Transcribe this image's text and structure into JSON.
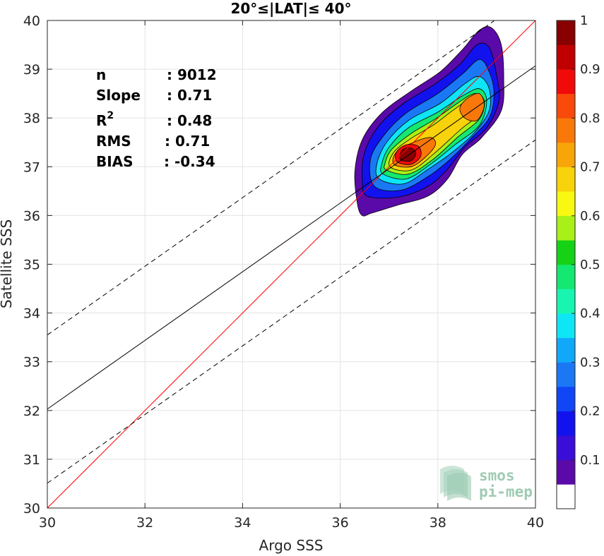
{
  "chart_data": {
    "type": "heatmap",
    "subtype": "2D density contour scatter comparison",
    "title": "20°≤|LAT|≤ 40°",
    "xlabel": "Argo SSS",
    "ylabel": "Satellite SSS",
    "xlim": [
      30,
      40
    ],
    "ylim": [
      30,
      40
    ],
    "xticks": [
      "30",
      "32",
      "34",
      "36",
      "38",
      "40"
    ],
    "yticks": [
      "30",
      "31",
      "32",
      "33",
      "34",
      "35",
      "36",
      "37",
      "38",
      "39",
      "40"
    ],
    "grid": true,
    "stats": [
      {
        "label": "n",
        "value": ": 9012"
      },
      {
        "label": "Slope",
        "value": ": 0.71"
      },
      {
        "label": "R",
        "sup": "2",
        "value": ": 0.48"
      },
      {
        "label": "RMS",
        "value": ": 0.71"
      },
      {
        "label": "BIAS",
        "value": ": -0.34"
      }
    ],
    "lines": {
      "identity": {
        "x": [
          30,
          40
        ],
        "y": [
          30,
          40
        ],
        "color": "#ff0000"
      },
      "fit": {
        "x": [
          30,
          40
        ],
        "y": [
          32.03,
          39.07
        ],
        "color": "#000000"
      },
      "upper_bound": {
        "x": [
          30,
          40
        ],
        "y": [
          33.55,
          40.59
        ],
        "color": "#000000",
        "style": "dashed"
      },
      "lower_bound": {
        "x": [
          30,
          40
        ],
        "y": [
          30.51,
          37.55
        ],
        "color": "#000000",
        "style": "dashed"
      }
    },
    "density_contours": [
      {
        "level": 0.05,
        "points": [
          [
            36.35,
            36.25
          ],
          [
            36.45,
            36.0
          ],
          [
            36.65,
            36.05
          ],
          [
            37.2,
            36.22
          ],
          [
            37.8,
            36.4
          ],
          [
            38.2,
            36.75
          ],
          [
            38.5,
            37.25
          ],
          [
            38.9,
            37.6
          ],
          [
            39.3,
            38.15
          ],
          [
            39.35,
            38.8
          ],
          [
            39.3,
            39.5
          ],
          [
            39.1,
            39.85
          ],
          [
            38.85,
            39.8
          ],
          [
            38.5,
            39.4
          ],
          [
            38.05,
            38.95
          ],
          [
            37.45,
            38.55
          ],
          [
            36.85,
            38.1
          ],
          [
            36.45,
            37.55
          ],
          [
            36.3,
            36.9
          ]
        ]
      },
      {
        "level": 0.15,
        "points": [
          [
            36.55,
            36.4
          ],
          [
            37.2,
            36.38
          ],
          [
            37.8,
            36.6
          ],
          [
            38.2,
            36.95
          ],
          [
            38.55,
            37.4
          ],
          [
            39.0,
            37.8
          ],
          [
            39.25,
            38.35
          ],
          [
            39.2,
            38.9
          ],
          [
            39.05,
            39.45
          ],
          [
            38.8,
            39.5
          ],
          [
            38.45,
            39.1
          ],
          [
            37.95,
            38.7
          ],
          [
            37.3,
            38.3
          ],
          [
            36.8,
            37.85
          ],
          [
            36.5,
            37.3
          ],
          [
            36.45,
            36.75
          ]
        ]
      },
      {
        "level": 0.25,
        "points": [
          [
            36.7,
            36.6
          ],
          [
            37.25,
            36.52
          ],
          [
            37.8,
            36.8
          ],
          [
            38.25,
            37.15
          ],
          [
            38.65,
            37.55
          ],
          [
            39.05,
            38.0
          ],
          [
            39.15,
            38.5
          ],
          [
            39.05,
            38.95
          ],
          [
            38.85,
            39.2
          ],
          [
            38.5,
            38.9
          ],
          [
            38.0,
            38.5
          ],
          [
            37.35,
            38.1
          ],
          [
            36.9,
            37.65
          ],
          [
            36.62,
            37.15
          ]
        ]
      },
      {
        "level": 0.35,
        "points": [
          [
            36.8,
            36.75
          ],
          [
            37.3,
            36.65
          ],
          [
            37.8,
            36.95
          ],
          [
            38.3,
            37.3
          ],
          [
            38.75,
            37.7
          ],
          [
            39.05,
            38.15
          ],
          [
            39.05,
            38.6
          ],
          [
            38.85,
            38.85
          ],
          [
            38.55,
            38.7
          ],
          [
            38.05,
            38.3
          ],
          [
            37.4,
            37.95
          ],
          [
            36.95,
            37.5
          ],
          [
            36.75,
            37.05
          ]
        ]
      },
      {
        "level": 0.45,
        "points": [
          [
            36.88,
            36.85
          ],
          [
            37.35,
            36.75
          ],
          [
            37.85,
            37.05
          ],
          [
            38.35,
            37.45
          ],
          [
            38.85,
            37.85
          ],
          [
            39.0,
            38.35
          ],
          [
            38.85,
            38.6
          ],
          [
            38.5,
            38.45
          ],
          [
            38.0,
            38.12
          ],
          [
            37.4,
            37.8
          ],
          [
            37.0,
            37.4
          ],
          [
            36.85,
            37.05
          ]
        ]
      },
      {
        "level": 0.55,
        "points": [
          [
            36.95,
            36.93
          ],
          [
            37.4,
            36.85
          ],
          [
            37.9,
            37.15
          ],
          [
            38.4,
            37.6
          ],
          [
            38.85,
            37.98
          ],
          [
            38.95,
            38.35
          ],
          [
            38.75,
            38.5
          ],
          [
            38.4,
            38.3
          ],
          [
            37.95,
            37.98
          ],
          [
            37.45,
            37.68
          ],
          [
            37.05,
            37.35
          ],
          [
            36.92,
            37.08
          ]
        ]
      },
      {
        "level": 0.65,
        "points": [
          [
            37.02,
            37.0
          ],
          [
            37.45,
            36.93
          ],
          [
            37.9,
            37.25
          ],
          [
            38.45,
            37.75
          ],
          [
            38.8,
            38.05
          ],
          [
            38.85,
            38.35
          ],
          [
            38.65,
            38.38
          ],
          [
            38.3,
            38.15
          ],
          [
            37.9,
            37.85
          ],
          [
            37.45,
            37.58
          ],
          [
            37.1,
            37.3
          ]
        ]
      },
      {
        "level": 0.75,
        "points": [
          [
            37.1,
            37.05
          ],
          [
            37.45,
            37.0
          ],
          [
            37.75,
            37.2
          ],
          [
            37.95,
            37.45
          ],
          [
            37.85,
            37.6
          ],
          [
            37.5,
            37.5
          ],
          [
            37.15,
            37.3
          ]
        ]
      },
      {
        "level": 0.75,
        "points": [
          [
            38.55,
            38.0
          ],
          [
            38.8,
            37.95
          ],
          [
            38.95,
            38.25
          ],
          [
            38.85,
            38.5
          ],
          [
            38.6,
            38.4
          ],
          [
            38.45,
            38.2
          ]
        ]
      },
      {
        "level": 0.85,
        "points": [
          [
            37.17,
            37.1
          ],
          [
            37.45,
            37.05
          ],
          [
            37.65,
            37.22
          ],
          [
            37.6,
            37.42
          ],
          [
            37.35,
            37.45
          ],
          [
            37.15,
            37.3
          ]
        ]
      },
      {
        "level": 0.95,
        "points": [
          [
            37.23,
            37.15
          ],
          [
            37.45,
            37.12
          ],
          [
            37.55,
            37.28
          ],
          [
            37.45,
            37.38
          ],
          [
            37.28,
            37.35
          ]
        ]
      }
    ],
    "colorbar": {
      "ticks": [
        "0.1",
        "0.2",
        "0.3",
        "0.4",
        "0.5",
        "0.6",
        "0.7",
        "0.8",
        "0.9",
        "1"
      ],
      "range": [
        0,
        1
      ],
      "bins": [
        {
          "from": 0.0,
          "to": 0.05,
          "color": "#ffffff"
        },
        {
          "from": 0.05,
          "to": 0.1,
          "color": "#5a0aa8"
        },
        {
          "from": 0.1,
          "to": 0.15,
          "color": "#3a0ed6"
        },
        {
          "from": 0.15,
          "to": 0.2,
          "color": "#1212ee"
        },
        {
          "from": 0.2,
          "to": 0.25,
          "color": "#1046f5"
        },
        {
          "from": 0.25,
          "to": 0.3,
          "color": "#1a78f5"
        },
        {
          "from": 0.3,
          "to": 0.35,
          "color": "#12a8fa"
        },
        {
          "from": 0.35,
          "to": 0.4,
          "color": "#0ee6f5"
        },
        {
          "from": 0.4,
          "to": 0.45,
          "color": "#18f5b0"
        },
        {
          "from": 0.45,
          "to": 0.5,
          "color": "#14e870"
        },
        {
          "from": 0.5,
          "to": 0.55,
          "color": "#16d216"
        },
        {
          "from": 0.55,
          "to": 0.6,
          "color": "#a8f018"
        },
        {
          "from": 0.6,
          "to": 0.65,
          "color": "#f8f812"
        },
        {
          "from": 0.65,
          "to": 0.7,
          "color": "#f8d20a"
        },
        {
          "from": 0.7,
          "to": 0.75,
          "color": "#f8a50a"
        },
        {
          "from": 0.75,
          "to": 0.8,
          "color": "#f8780a"
        },
        {
          "from": 0.8,
          "to": 0.85,
          "color": "#f84a0a"
        },
        {
          "from": 0.85,
          "to": 0.9,
          "color": "#f00a0a"
        },
        {
          "from": 0.9,
          "to": 0.95,
          "color": "#c00000"
        },
        {
          "from": 0.95,
          "to": 1.0,
          "color": "#880000"
        }
      ]
    }
  },
  "logo": {
    "line1": "smos",
    "line2": "pi-mep"
  }
}
